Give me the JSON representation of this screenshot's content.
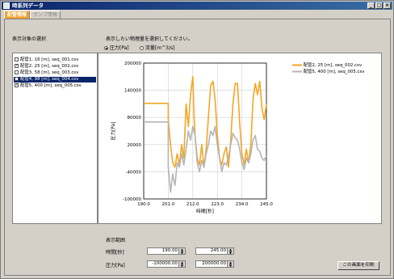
{
  "window": {
    "title": "時系列データ"
  },
  "tabs": [
    {
      "label": "配管情報",
      "active": true
    },
    {
      "label": "ポンプ情報",
      "active": false
    }
  ],
  "list": {
    "label": "表示対象の選択",
    "items": [
      {
        "label": "配管1, 16 [m], seq_001.csv",
        "checked": false,
        "selected": false
      },
      {
        "label": "配管2, 25 [m], seq_002.csv",
        "checked": true,
        "selected": false
      },
      {
        "label": "配管3, 58 [m], seq_003.csv",
        "checked": false,
        "selected": false
      },
      {
        "label": "配管4, 98 [m], seq_004.csv",
        "checked": false,
        "selected": true
      },
      {
        "label": "配管5, 400 [m], seq_005.csv",
        "checked": true,
        "selected": false
      }
    ]
  },
  "quantity": {
    "label": "表示したい物理量を選択してください。",
    "options": [
      {
        "label": "圧力[Pa]",
        "selected": true
      },
      {
        "label": "流量[m^3/s]",
        "selected": false
      }
    ]
  },
  "chart_data": {
    "type": "line",
    "xlabel": "時間[秒]",
    "ylabel": "圧力[Pa]",
    "xlim": [
      190.0,
      245.0
    ],
    "ylim": [
      -100000,
      200000
    ],
    "x_ticks": [
      "190.0",
      "201.0",
      "212.0",
      "223.0",
      "234.0",
      "245.0"
    ],
    "y_ticks": [
      "200000",
      "140000",
      "80000",
      "20000",
      "-40000",
      "-100000"
    ],
    "grid": true,
    "legend_position": "right",
    "series": [
      {
        "name": "配管2, 25 [m], seq_002.csv",
        "color": "#f5a623",
        "points": [
          [
            190,
            111000
          ],
          [
            201,
            111000
          ],
          [
            201,
            75000
          ],
          [
            202,
            20000
          ],
          [
            203,
            -20000
          ],
          [
            204,
            -30000
          ],
          [
            205,
            0
          ],
          [
            206,
            -25000
          ],
          [
            207,
            20000
          ],
          [
            208,
            -10000
          ],
          [
            208.5,
            50000
          ],
          [
            209,
            110000
          ],
          [
            210,
            60000
          ],
          [
            211,
            130000
          ],
          [
            212,
            170000
          ],
          [
            212.5,
            90000
          ],
          [
            213,
            40000
          ],
          [
            214,
            -10000
          ],
          [
            215,
            -25000
          ],
          [
            216,
            20000
          ],
          [
            217,
            -30000
          ],
          [
            218,
            10000
          ],
          [
            219,
            80000
          ],
          [
            220,
            150000
          ],
          [
            221,
            160000
          ],
          [
            222,
            120000
          ],
          [
            223,
            40000
          ],
          [
            224,
            -10000
          ],
          [
            225,
            -25000
          ],
          [
            226,
            0
          ],
          [
            227,
            15000
          ],
          [
            228,
            -30000
          ],
          [
            229,
            30000
          ],
          [
            230,
            110000
          ],
          [
            231,
            155000
          ],
          [
            232,
            155000
          ],
          [
            233,
            70000
          ],
          [
            234,
            0
          ],
          [
            235,
            -25000
          ],
          [
            236,
            10000
          ],
          [
            237,
            -20000
          ],
          [
            238,
            20000
          ],
          [
            239,
            120000
          ],
          [
            240,
            155000
          ],
          [
            241,
            130000
          ],
          [
            242,
            160000
          ],
          [
            243,
            100000
          ],
          [
            244,
            75000
          ],
          [
            245,
            110000
          ]
        ]
      },
      {
        "name": "配管5, 400 [m], seq_005.csv",
        "color": "#b5b5b5",
        "points": [
          [
            190,
            70000
          ],
          [
            201,
            70000
          ],
          [
            201,
            -30000
          ],
          [
            202,
            -85000
          ],
          [
            203,
            -45000
          ],
          [
            204,
            -70000
          ],
          [
            205,
            -20000
          ],
          [
            206,
            -30000
          ],
          [
            207,
            0
          ],
          [
            208,
            -25000
          ],
          [
            209,
            10000
          ],
          [
            210,
            50000
          ],
          [
            211,
            30000
          ],
          [
            212,
            60000
          ],
          [
            213,
            40000
          ],
          [
            214,
            -20000
          ],
          [
            215,
            -40000
          ],
          [
            216,
            -15000
          ],
          [
            217,
            -30000
          ],
          [
            218,
            0
          ],
          [
            219,
            20000
          ],
          [
            220,
            50000
          ],
          [
            221,
            40000
          ],
          [
            222,
            60000
          ],
          [
            223,
            20000
          ],
          [
            224,
            -10000
          ],
          [
            225,
            -40000
          ],
          [
            226,
            -20000
          ],
          [
            227,
            -25000
          ],
          [
            228,
            -5000
          ],
          [
            229,
            20000
          ],
          [
            230,
            45000
          ],
          [
            231,
            35000
          ],
          [
            232,
            30000
          ],
          [
            233,
            10000
          ],
          [
            234,
            -20000
          ],
          [
            235,
            -35000
          ],
          [
            236,
            -10000
          ],
          [
            237,
            -20000
          ],
          [
            238,
            0
          ],
          [
            239,
            30000
          ],
          [
            240,
            40000
          ],
          [
            241,
            10000
          ],
          [
            242,
            5000
          ],
          [
            243,
            -10000
          ],
          [
            244,
            -15000
          ],
          [
            245,
            -5000
          ]
        ]
      }
    ]
  },
  "range": {
    "label": "表示範囲",
    "time_label": "時間[秒]",
    "time_min": "190.00",
    "time_max": "245.00",
    "pressure_label": "圧力[Pa]",
    "pressure_min": "-100000.00",
    "pressure_max": "200000.00"
  },
  "print_button": "この画面を印刷"
}
